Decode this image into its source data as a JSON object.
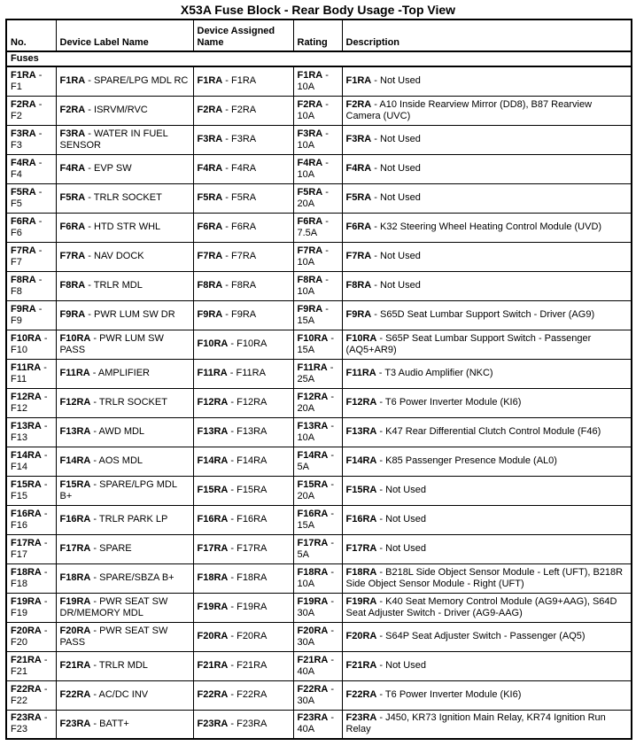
{
  "page_title": "X53A Fuse Block - Rear Body Usage -Top View",
  "colors": {
    "background": "#ffffff",
    "text": "#000000",
    "border": "#000000"
  },
  "table": {
    "headers": [
      "No.",
      "Device Label Name",
      "Device Assigned Name",
      "Rating",
      "Description"
    ],
    "section_label": "Fuses",
    "rows": [
      {
        "id": "F1RA",
        "no": "F1",
        "device_label": "SPARE/LPG MDL RC",
        "assigned_name": "F1RA",
        "rating": "10A",
        "description": "Not Used"
      },
      {
        "id": "F2RA",
        "no": "F2",
        "device_label": "ISRVM/RVC",
        "assigned_name": "F2RA",
        "rating": "10A",
        "description": "A10 Inside Rearview Mirror (DD8), B87 Rearview Camera (UVC)"
      },
      {
        "id": "F3RA",
        "no": "F3",
        "device_label": "WATER IN FUEL SENSOR",
        "assigned_name": "F3RA",
        "rating": "10A",
        "description": "Not Used"
      },
      {
        "id": "F4RA",
        "no": "F4",
        "device_label": "EVP SW",
        "assigned_name": "F4RA",
        "rating": "10A",
        "description": "Not Used"
      },
      {
        "id": "F5RA",
        "no": "F5",
        "device_label": "TRLR SOCKET",
        "assigned_name": "F5RA",
        "rating": "20A",
        "description": "Not Used"
      },
      {
        "id": "F6RA",
        "no": "F6",
        "device_label": "HTD STR WHL",
        "assigned_name": "F6RA",
        "rating": "7.5A",
        "description": "K32 Steering Wheel Heating Control Module (UVD)"
      },
      {
        "id": "F7RA",
        "no": "F7",
        "device_label": "NAV DOCK",
        "assigned_name": "F7RA",
        "rating": "10A",
        "description": "Not Used"
      },
      {
        "id": "F8RA",
        "no": "F8",
        "device_label": "TRLR MDL",
        "assigned_name": "F8RA",
        "rating": "10A",
        "description": "Not Used"
      },
      {
        "id": "F9RA",
        "no": "F9",
        "device_label": "PWR LUM SW DR",
        "assigned_name": "F9RA",
        "rating": "15A",
        "description": "S65D Seat Lumbar Support Switch - Driver (AG9)"
      },
      {
        "id": "F10RA",
        "no": "F10",
        "device_label": "PWR LUM SW PASS",
        "assigned_name": "F10RA",
        "rating": "15A",
        "description": "S65P Seat Lumbar Support Switch - Passenger (AQ5+AR9)"
      },
      {
        "id": "F11RA",
        "no": "F11",
        "device_label": "AMPLIFIER",
        "assigned_name": "F11RA",
        "rating": "25A",
        "description": "T3 Audio Amplifier (NKC)"
      },
      {
        "id": "F12RA",
        "no": "F12",
        "device_label": "TRLR SOCKET",
        "assigned_name": "F12RA",
        "rating": "20A",
        "description": "T6 Power Inverter Module (KI6)"
      },
      {
        "id": "F13RA",
        "no": "F13",
        "device_label": "AWD MDL",
        "assigned_name": "F13RA",
        "rating": "10A",
        "description": "K47 Rear Differential Clutch Control Module (F46)"
      },
      {
        "id": "F14RA",
        "no": "F14",
        "device_label": "AOS MDL",
        "assigned_name": "F14RA",
        "rating": "5A",
        "description": "K85 Passenger Presence Module (AL0)"
      },
      {
        "id": "F15RA",
        "no": "F15",
        "device_label": "SPARE/LPG MDL B+",
        "assigned_name": "F15RA",
        "rating": "20A",
        "description": "Not Used"
      },
      {
        "id": "F16RA",
        "no": "F16",
        "device_label": "TRLR PARK LP",
        "assigned_name": "F16RA",
        "rating": "15A",
        "description": "Not Used"
      },
      {
        "id": "F17RA",
        "no": "F17",
        "device_label": "SPARE",
        "assigned_name": "F17RA",
        "rating": "5A",
        "description": "Not Used"
      },
      {
        "id": "F18RA",
        "no": "F18",
        "device_label": "SPARE/SBZA B+",
        "assigned_name": "F18RA",
        "rating": "10A",
        "description": "B218L Side Object Sensor Module - Left (UFT), B218R Side Object Sensor Module - Right (UFT)"
      },
      {
        "id": "F19RA",
        "no": "F19",
        "device_label": "PWR SEAT SW DR/MEMORY MDL",
        "assigned_name": "F19RA",
        "rating": "30A",
        "description": "K40 Seat Memory Control Module (AG9+AAG), S64D Seat Adjuster Switch - Driver (AG9-AAG)"
      },
      {
        "id": "F20RA",
        "no": "F20",
        "device_label": "PWR SEAT SW PASS",
        "assigned_name": "F20RA",
        "rating": "30A",
        "description": "S64P Seat Adjuster Switch - Passenger (AQ5)"
      },
      {
        "id": "F21RA",
        "no": "F21",
        "device_label": "TRLR MDL",
        "assigned_name": "F21RA",
        "rating": "40A",
        "description": "Not Used"
      },
      {
        "id": "F22RA",
        "no": "F22",
        "device_label": "AC/DC INV",
        "assigned_name": "F22RA",
        "rating": "30A",
        "description": "T6 Power Inverter Module (KI6)"
      },
      {
        "id": "F23RA",
        "no": "F23",
        "device_label": "BATT+",
        "assigned_name": "F23RA",
        "rating": "40A",
        "description": "J450, KR73 Ignition Main Relay, KR74 Ignition Run Relay"
      }
    ]
  }
}
